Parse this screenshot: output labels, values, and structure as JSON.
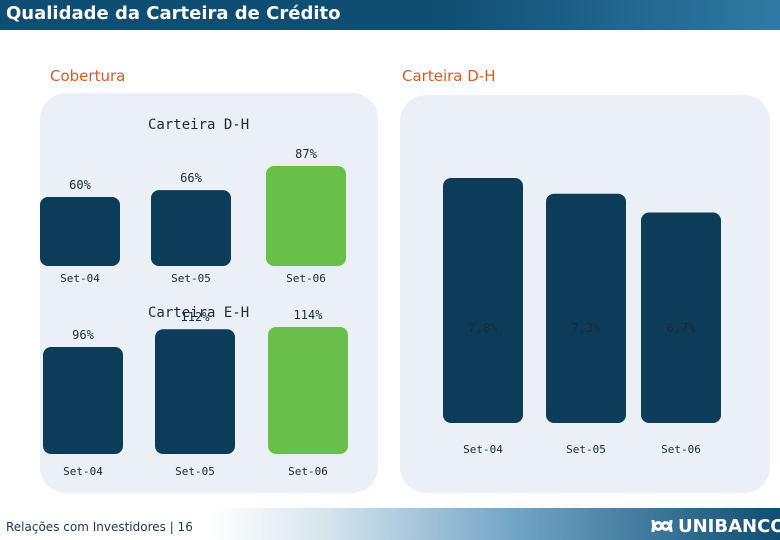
{
  "slide": {
    "title": "Qualidade da Carteira de Crédito",
    "left_section_label": "Cobertura",
    "right_section_label": "Carteira D-H",
    "footer": "Relações com Investidores | 16",
    "logo_text": "UNIBANCO"
  },
  "colors": {
    "dark_bar": "#0c3c58",
    "highlight_bar": "#6abf4b",
    "panel": "#eaf0f5",
    "accent_label": "#e05a1e"
  },
  "chart_data": [
    {
      "type": "bar",
      "title": "Carteira D-H",
      "categories": [
        "Set-04",
        "Set-05",
        "Set-06"
      ],
      "values": [
        60,
        66,
        87
      ],
      "value_labels": [
        "60%",
        "66%",
        "87%"
      ],
      "highlight_index": 2,
      "ylim": [
        0,
        87
      ]
    },
    {
      "type": "bar",
      "title": "Carteira E-H",
      "categories": [
        "Set-04",
        "Set-05",
        "Set-06"
      ],
      "values": [
        96,
        112,
        114
      ],
      "value_labels": [
        "96%",
        "112%",
        "114%"
      ],
      "highlight_index": 2,
      "ylim": [
        0,
        114
      ]
    },
    {
      "type": "bar",
      "title": "",
      "categories": [
        "Set-04",
        "Set-05",
        "Set-06"
      ],
      "values": [
        7.8,
        7.3,
        6.7
      ],
      "value_labels": [
        "7,8%",
        "7,3%",
        "6,7%"
      ],
      "highlight_index": -1,
      "ylim": [
        0,
        7.8
      ]
    }
  ]
}
